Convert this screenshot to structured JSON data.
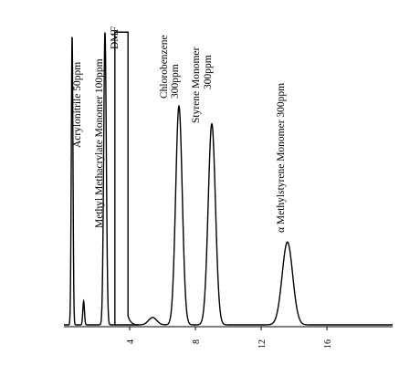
{
  "chart_data": {
    "type": "line",
    "title": "",
    "xlabel": "",
    "ylabel": "",
    "x_axis_ticks": [
      "4",
      "8",
      "12",
      "16"
    ],
    "xlim": [
      0,
      20
    ],
    "ylim": [
      0,
      100
    ],
    "grid": false,
    "axis_style": "x-axis only, tick labels rotated 90°",
    "line_color": "#000000",
    "peaks": [
      {
        "compound": "Acrylonitrile",
        "conc": "50ppm",
        "rt": 0.5,
        "height": 98,
        "width": 0.05
      },
      {
        "compound": "Methyl Methacrylate Monomer",
        "conc": "100ppm",
        "rt": 1.2,
        "height": 8,
        "width": 0.05
      },
      {
        "compound": "",
        "conc": "",
        "rt": 2.5,
        "height": 99,
        "width": 0.08
      },
      {
        "compound": "DMF",
        "conc": "",
        "rt": 3.5,
        "height": 99,
        "width": 0.8,
        "shape": "plateau"
      },
      {
        "compound": "",
        "conc": "",
        "rt": 5.4,
        "height": 2.5,
        "width": 0.25
      },
      {
        "compound": "Chlorobenzene",
        "conc": "300ppm",
        "rt": 7.0,
        "height": 74,
        "width": 0.2
      },
      {
        "compound": "Styrene Monomer",
        "conc": "300ppm",
        "rt": 9.0,
        "height": 68,
        "width": 0.22
      },
      {
        "compound": "α Methylstyrene Monomer",
        "conc": "300ppm",
        "rt": 13.6,
        "height": 28,
        "width": 0.32
      }
    ],
    "labels": [
      {
        "name": "label-acrylonitrile",
        "text": "Acrylonitrile  50ppm"
      },
      {
        "name": "label-methyl-methacrylate",
        "text": "Methyl Methacrylate Monomer  100ppm"
      },
      {
        "name": "label-dmf",
        "text": "DMF"
      },
      {
        "name": "label-chlorobenzene",
        "text": "Chlorobenzene"
      },
      {
        "name": "label-chlorobenzene-conc",
        "text": "300ppm"
      },
      {
        "name": "label-styrene",
        "text": "Styrene Monomer"
      },
      {
        "name": "label-styrene-conc",
        "text": "300ppm"
      },
      {
        "name": "label-methylstyrene",
        "text": "α Methylstyrene Monomer  300ppm"
      }
    ]
  }
}
